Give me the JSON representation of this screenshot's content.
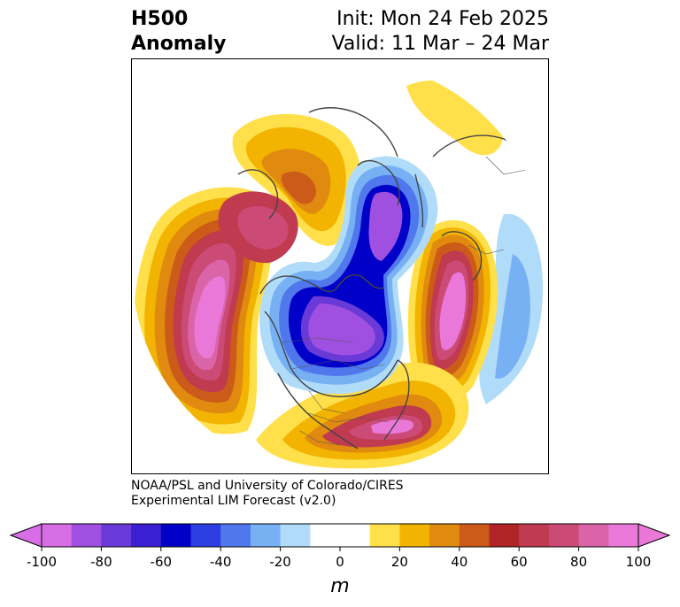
{
  "title": {
    "line1": "H500",
    "line2": "Anomaly",
    "init": "Init: Mon 24 Feb 2025",
    "valid": "Valid: 11 Mar – 24 Mar"
  },
  "credit": {
    "line1": "NOAA/PSL and University of Colorado/CIRES",
    "line2": "Experimental LIM Forecast (v2.0)"
  },
  "colorbar": {
    "unit": "m",
    "min": -100,
    "max": 100,
    "step": 10,
    "ticks": [
      -100,
      -80,
      -60,
      -40,
      -20,
      0,
      20,
      40,
      60,
      80,
      100
    ],
    "colors": [
      "#d86ee6",
      "#a050e0",
      "#6a3ad8",
      "#3a20d0",
      "#0000c8",
      "#2c3ee0",
      "#5078ec",
      "#78b0f4",
      "#b0dcfa",
      "#ffffff",
      "#ffffff",
      "#ffe04a",
      "#f2b400",
      "#e08a10",
      "#cc5a18",
      "#b02428",
      "#c03a50",
      "#cc4a76",
      "#da64a8",
      "#ea78d8"
    ]
  },
  "map": {
    "projection": "polar-stereographic-north",
    "features": [
      "negative-anomaly-polar",
      "positive-anomaly-north-pacific",
      "positive-anomaly-north-atlantic",
      "positive-anomaly-eastern-us",
      "positive-anomaly-alaska",
      "positive-anomaly-siberia"
    ]
  }
}
